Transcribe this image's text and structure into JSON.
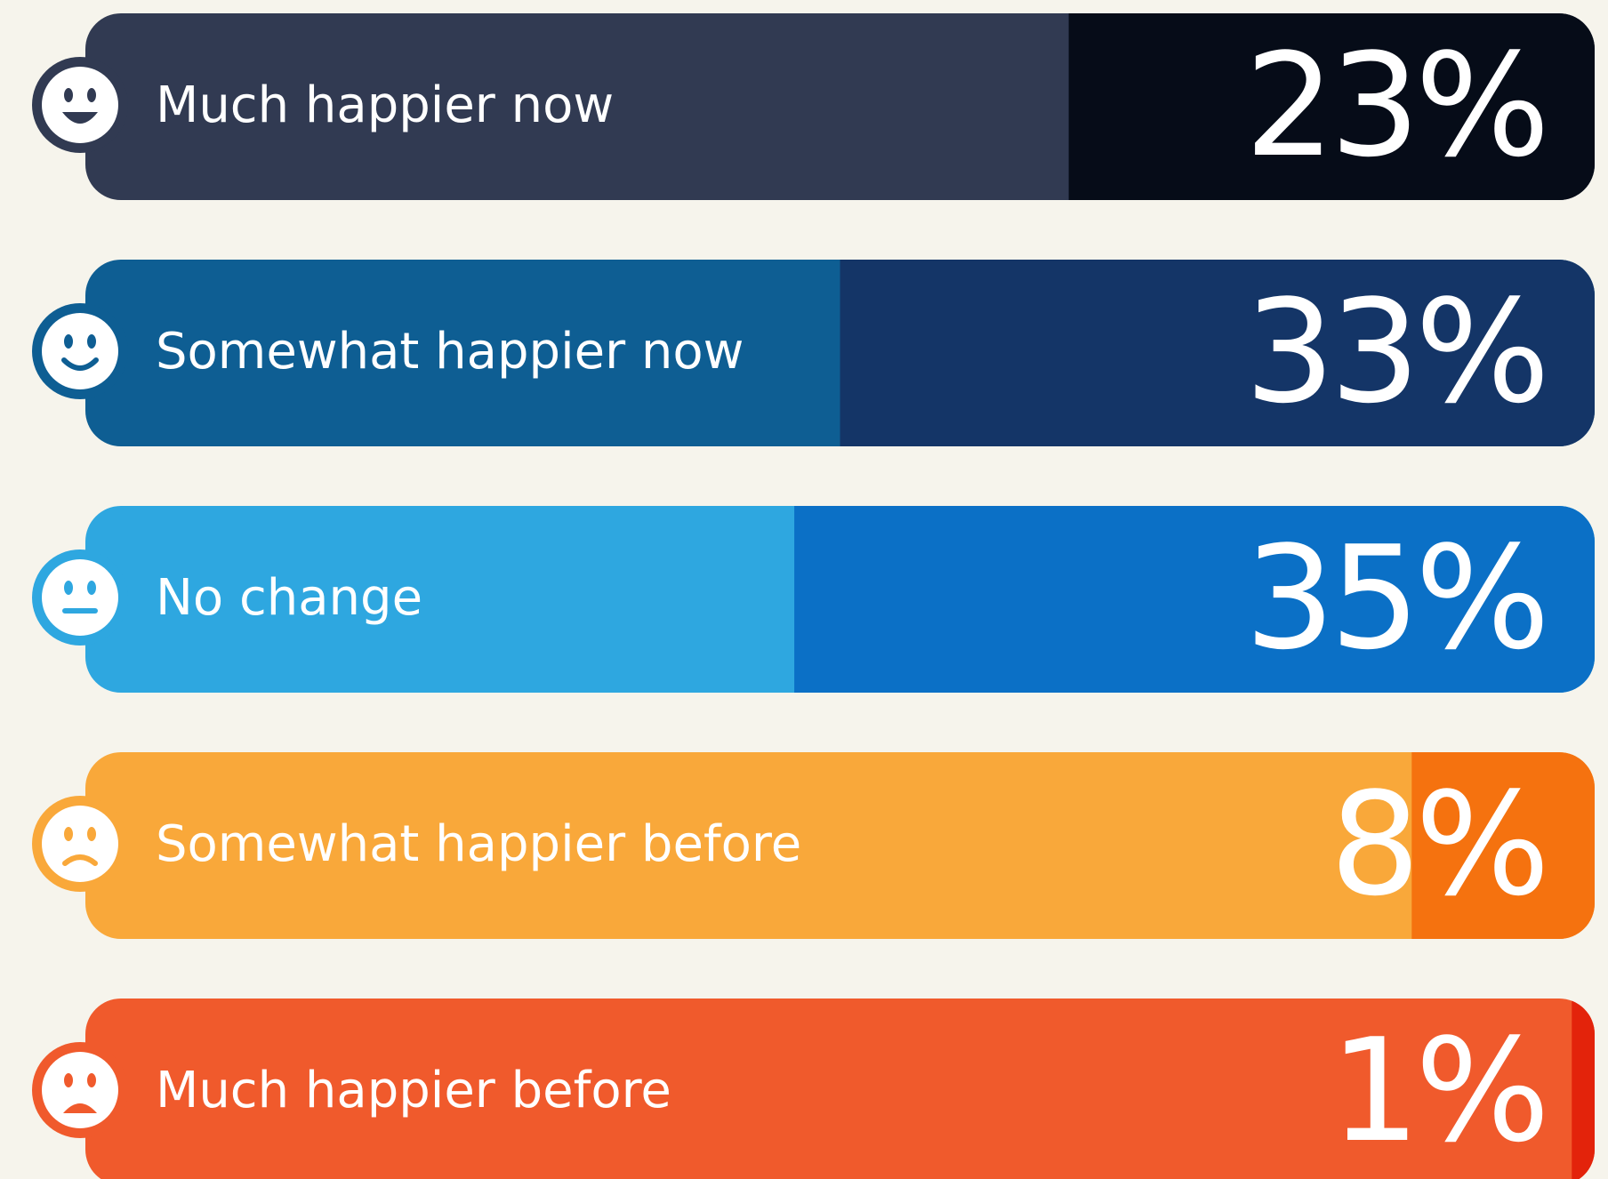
{
  "chart_data": {
    "type": "bar",
    "categories": [
      "Much happier now",
      "Somewhat happier now",
      "No change",
      "Somewhat happier before",
      "Much happier before"
    ],
    "values": [
      23,
      33,
      35,
      8,
      1
    ],
    "value_labels": [
      "23%",
      "33%",
      "35%",
      "8%",
      "1%"
    ],
    "xlim": [
      0,
      66
    ],
    "bar_colors": [
      "#313a52",
      "#0e5e93",
      "#2ea7e0",
      "#f9a83a",
      "#f05a2c"
    ],
    "value_colors": [
      "#060c18",
      "#143567",
      "#0b70c6",
      "#f5720f",
      "#e3230b"
    ]
  }
}
